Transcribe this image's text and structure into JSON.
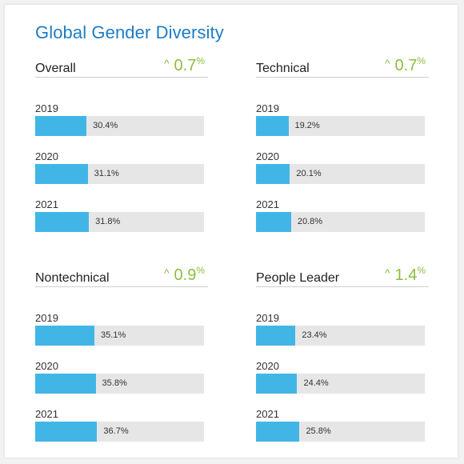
{
  "title": "Global Gender Diversity",
  "colors": {
    "title": "#1d7cc6",
    "bar": "#41b6e6",
    "track": "#e6e6e6",
    "delta": "#8cbe3f"
  },
  "chart_data": [
    {
      "type": "bar",
      "title": "Overall",
      "change": "0.7",
      "categories": [
        "2019",
        "2020",
        "2021"
      ],
      "values": [
        30.4,
        31.1,
        31.8
      ],
      "labels": [
        "30.4%",
        "31.1%",
        "31.8%"
      ],
      "xlim": [
        0,
        100
      ]
    },
    {
      "type": "bar",
      "title": "Technical",
      "change": "0.7",
      "categories": [
        "2019",
        "2020",
        "2021"
      ],
      "values": [
        19.2,
        20.1,
        20.8
      ],
      "labels": [
        "19.2%",
        "20.1%",
        "20.8%"
      ],
      "xlim": [
        0,
        100
      ]
    },
    {
      "type": "bar",
      "title": "Nontechnical",
      "change": "0.9",
      "categories": [
        "2019",
        "2020",
        "2021"
      ],
      "values": [
        35.1,
        35.8,
        36.7
      ],
      "labels": [
        "35.1%",
        "35.8%",
        "36.7%"
      ],
      "xlim": [
        0,
        100
      ]
    },
    {
      "type": "bar",
      "title": "People Leader",
      "change": "1.4",
      "categories": [
        "2019",
        "2020",
        "2021"
      ],
      "values": [
        23.4,
        24.4,
        25.8
      ],
      "labels": [
        "23.4%",
        "24.4%",
        "25.8%"
      ],
      "xlim": [
        0,
        100
      ]
    }
  ]
}
